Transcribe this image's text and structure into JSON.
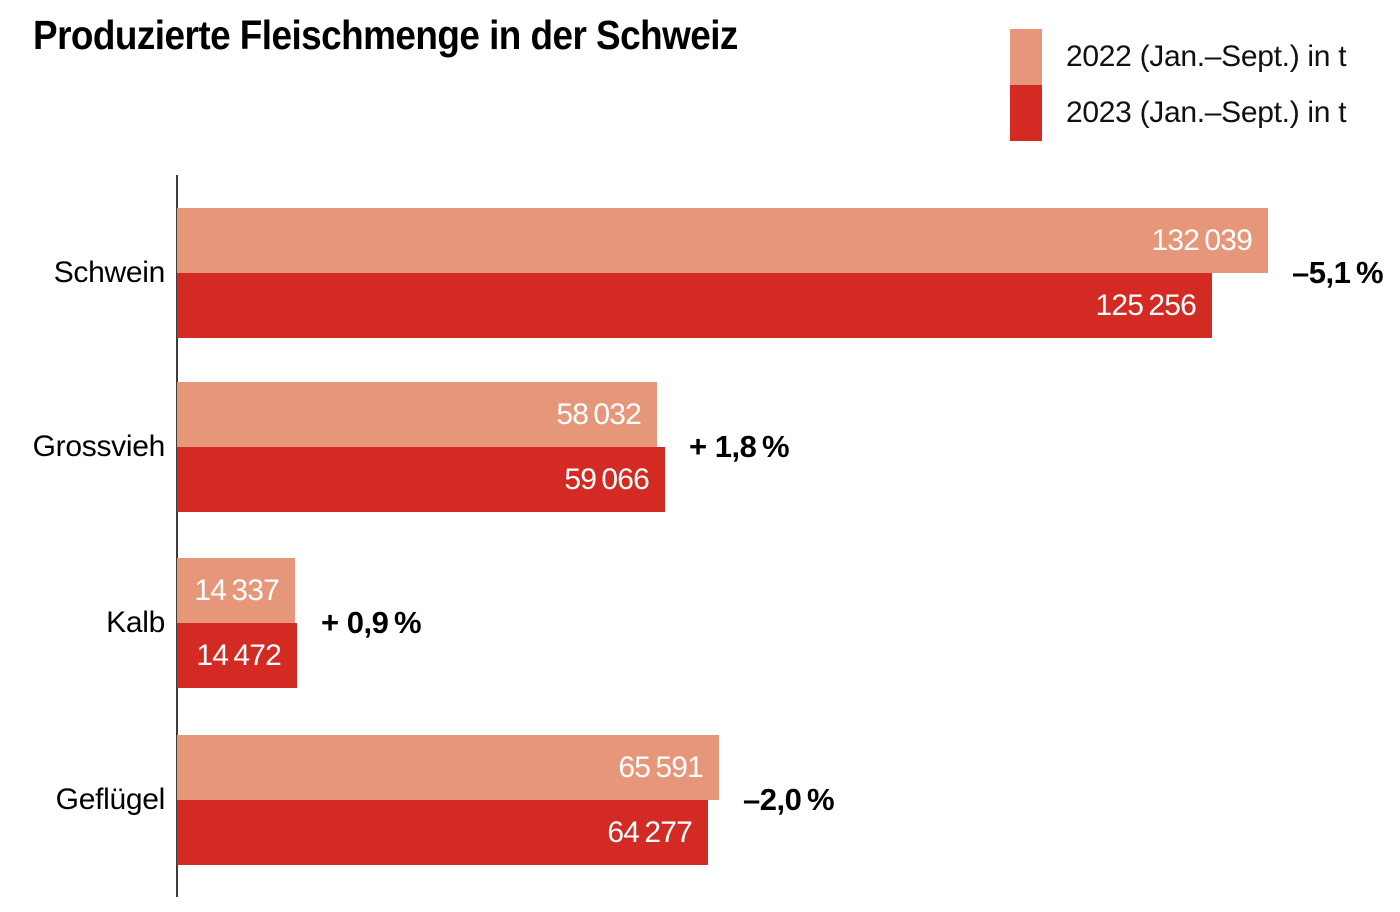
{
  "title": "Produzierte Fleischmenge in der Schweiz",
  "legend": [
    {
      "label": "2022 (Jan.–Sept.) in t",
      "color": "#E6977A"
    },
    {
      "label": "2023 (Jan.–Sept.) in t",
      "color": "#D32B24"
    }
  ],
  "chart_data": {
    "type": "bar",
    "orientation": "horizontal",
    "title": "Produzierte Fleischmenge in der Schweiz",
    "categories": [
      "Schwein",
      "Grossvieh",
      "Kalb",
      "Geflügel"
    ],
    "series": [
      {
        "name": "2022 (Jan.–Sept.) in t",
        "color": "#E6977A",
        "values": [
          132039,
          58032,
          14337,
          65591
        ]
      },
      {
        "name": "2023 (Jan.–Sept.) in t",
        "color": "#D32B24",
        "values": [
          125256,
          59066,
          14472,
          64277
        ]
      }
    ],
    "change_labels": [
      "–5,1 %",
      "+ 1,8 %",
      "+ 0,9 %",
      "–2,0 %"
    ],
    "value_label_color": "#FFFFFF",
    "axis_color": "#3c3c3c",
    "xlim": [
      0,
      132039
    ],
    "grid": false,
    "legend_position": "top-right",
    "xlabel": "",
    "ylabel": ""
  }
}
